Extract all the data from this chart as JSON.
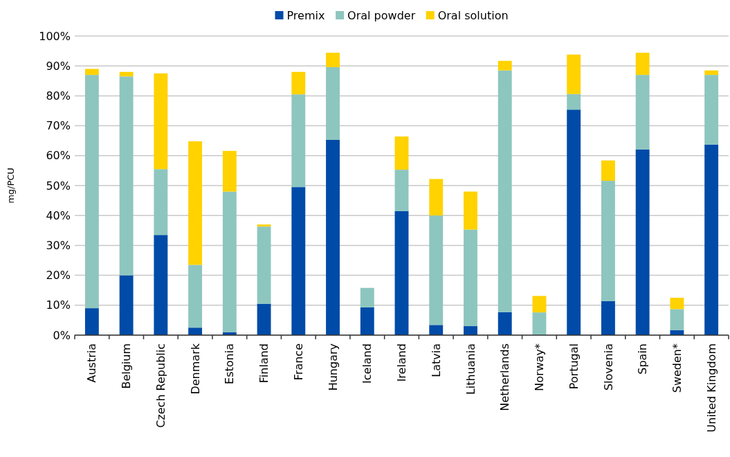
{
  "chart_data": {
    "type": "bar",
    "stacked": true,
    "ylabel": "mg/PCU",
    "categories": [
      "Austria",
      "Belgium",
      "Czech Republic",
      "Denmark",
      "Estonia",
      "Finland",
      "France",
      "Hungary",
      "Iceland",
      "Ireland",
      "Latvia",
      "Lithuania",
      "Netherlands",
      "Norway*",
      "Portugal",
      "Slovenia",
      "Spain",
      "Sweden*",
      "United Kingdom"
    ],
    "series": [
      {
        "name": "Premix",
        "color": "#004ba8",
        "values": [
          9,
          20,
          33.5,
          2.5,
          1,
          10.5,
          49.5,
          65.3,
          9.3,
          41.5,
          3.4,
          3,
          7.7,
          0,
          75.4,
          11.4,
          62.1,
          1.7,
          63.7
        ]
      },
      {
        "name": "Oral powder",
        "color": "#8dc6bf",
        "values": [
          78,
          66.5,
          22,
          21,
          47,
          25.8,
          31,
          24.3,
          6.5,
          13.8,
          36.6,
          32.3,
          80.8,
          7.6,
          5.2,
          40.2,
          24.9,
          7,
          23.3
        ]
      },
      {
        "name": "Oral solution",
        "color": "#ffd200",
        "values": [
          2,
          1.5,
          32,
          41.3,
          13.6,
          0.7,
          7.5,
          4.8,
          0,
          11.1,
          12.2,
          12.7,
          3.2,
          5.5,
          13.2,
          6.8,
          7.4,
          3.8,
          1.5
        ]
      }
    ],
    "ylim": [
      0,
      100
    ],
    "yticks": [
      {
        "value": 0,
        "label": "0%"
      },
      {
        "value": 10,
        "label": "10%"
      },
      {
        "value": 20,
        "label": "20%"
      },
      {
        "value": 30,
        "label": "30%"
      },
      {
        "value": 40,
        "label": "40%"
      },
      {
        "value": 50,
        "label": "50%"
      },
      {
        "value": 60,
        "label": "60%"
      },
      {
        "value": 70,
        "label": "70%"
      },
      {
        "value": 80,
        "label": "80%"
      },
      {
        "value": 90,
        "label": "90%"
      },
      {
        "value": 100,
        "label": "100%"
      }
    ],
    "grid": "y",
    "legend": "top"
  }
}
